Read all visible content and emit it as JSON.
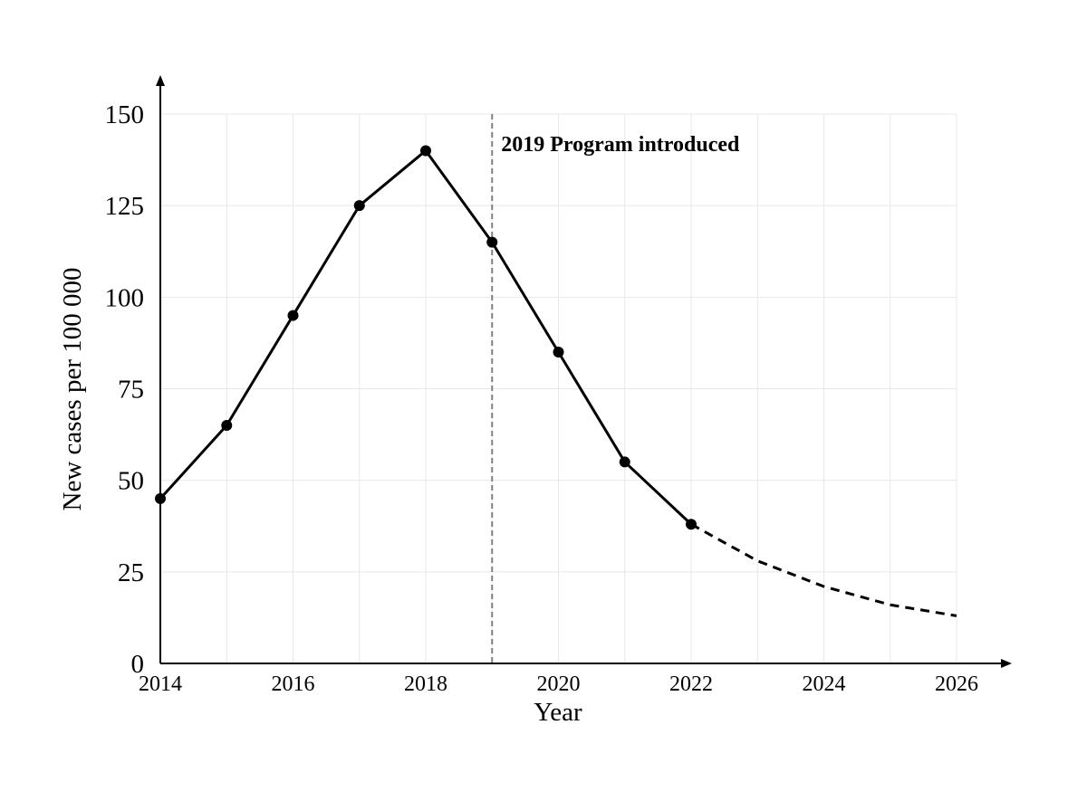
{
  "chart_data": {
    "type": "line",
    "xlabel": "Year",
    "ylabel": "New cases per 100 000",
    "xlim": [
      2014,
      2026
    ],
    "ylim": [
      0,
      150
    ],
    "x_ticks": [
      2014,
      2016,
      2018,
      2020,
      2022,
      2024,
      2026
    ],
    "y_ticks": [
      0,
      25,
      50,
      75,
      100,
      125,
      150
    ],
    "grid": true,
    "series": [
      {
        "style": "solid",
        "markers": true,
        "x": [
          2014,
          2015,
          2016,
          2017,
          2018,
          2019,
          2020,
          2021,
          2022
        ],
        "y": [
          45,
          65,
          95,
          125,
          140,
          115,
          85,
          55,
          38
        ]
      },
      {
        "style": "dashed",
        "markers": false,
        "x": [
          2022,
          2023,
          2024,
          2025,
          2026
        ],
        "y": [
          38,
          28,
          21,
          16,
          13
        ]
      }
    ],
    "annotations": [
      {
        "x": 2019,
        "line": "vertical-dashed",
        "text": "2019 Program introduced"
      }
    ],
    "colors": {
      "line": "#000000",
      "grid": "#e8e8e8",
      "annotation_line": "#808080"
    }
  }
}
